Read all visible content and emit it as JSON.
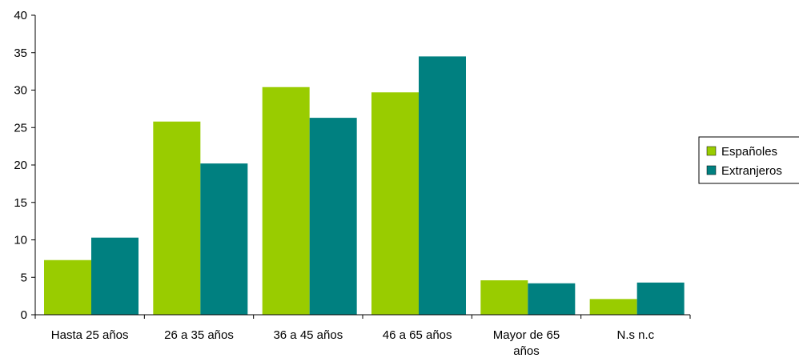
{
  "chart_data": {
    "type": "bar",
    "categories": [
      "Hasta 25 años",
      "26 a 35 años",
      "36 a 45 años",
      "46 a 65 años",
      "Mayor de 65 años",
      "N.s n.c"
    ],
    "category_lines": [
      [
        "Hasta 25 años"
      ],
      [
        "26 a 35 años"
      ],
      [
        "36 a 45 años"
      ],
      [
        "46 a 65 años"
      ],
      [
        "Mayor de 65",
        "años"
      ],
      [
        "N.s n.c"
      ]
    ],
    "series": [
      {
        "name": "Españoles",
        "color": "#99cc00",
        "values": [
          7.3,
          25.8,
          30.4,
          29.7,
          4.6,
          2.1
        ]
      },
      {
        "name": "Extranjeros",
        "color": "#008080",
        "values": [
          10.3,
          20.2,
          26.3,
          34.5,
          4.2,
          4.3
        ]
      }
    ],
    "ylim": [
      0,
      40
    ],
    "yticks": [
      0,
      5,
      10,
      15,
      20,
      25,
      30,
      35,
      40
    ],
    "grid": false,
    "legend_position": "right"
  }
}
